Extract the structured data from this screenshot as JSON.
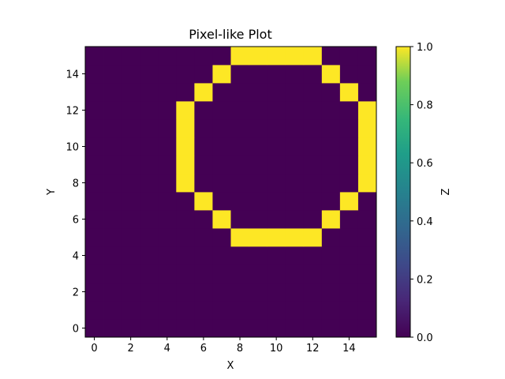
{
  "chart_data": {
    "type": "heatmap",
    "title": "Pixel-like Plot",
    "xlabel": "X",
    "ylabel": "Y",
    "colorbar_label": "Z",
    "colormap": "viridis",
    "color_low": "#440154",
    "color_high": "#fde725",
    "xlim": [
      -0.5,
      15.5
    ],
    "ylim": [
      -0.5,
      15.5
    ],
    "x_ticks": [
      0,
      2,
      4,
      6,
      8,
      10,
      12,
      14
    ],
    "y_ticks": [
      0,
      2,
      4,
      6,
      8,
      10,
      12,
      14
    ],
    "colorbar_range": [
      0.0,
      1.0
    ],
    "colorbar_ticks": [
      "0.0",
      "0.2",
      "0.4",
      "0.6",
      "0.8",
      "1.0"
    ],
    "grid": false,
    "z_rows_bottom_to_top": [
      [
        0,
        0,
        0,
        0,
        0,
        0,
        0,
        0,
        0,
        0,
        0,
        0,
        0,
        0,
        0,
        0
      ],
      [
        0,
        0,
        0,
        0,
        0,
        0,
        0,
        0,
        0,
        0,
        0,
        0,
        0,
        0,
        0,
        0
      ],
      [
        0,
        0,
        0,
        0,
        0,
        0,
        0,
        0,
        0,
        0,
        0,
        0,
        0,
        0,
        0,
        0
      ],
      [
        0,
        0,
        0,
        0,
        0,
        0,
        0,
        0,
        0,
        0,
        0,
        0,
        0,
        0,
        0,
        0
      ],
      [
        0,
        0,
        0,
        0,
        0,
        0,
        0,
        0,
        0,
        0,
        0,
        0,
        0,
        0,
        0,
        0
      ],
      [
        0,
        0,
        0,
        0,
        0,
        0,
        0,
        0,
        1,
        1,
        1,
        1,
        1,
        0,
        0,
        0
      ],
      [
        0,
        0,
        0,
        0,
        0,
        0,
        0,
        1,
        0,
        0,
        0,
        0,
        0,
        1,
        0,
        0
      ],
      [
        0,
        0,
        0,
        0,
        0,
        0,
        1,
        0,
        0,
        0,
        0,
        0,
        0,
        0,
        1,
        0
      ],
      [
        0,
        0,
        0,
        0,
        0,
        1,
        0,
        0,
        0,
        0,
        0,
        0,
        0,
        0,
        0,
        1
      ],
      [
        0,
        0,
        0,
        0,
        0,
        1,
        0,
        0,
        0,
        0,
        0,
        0,
        0,
        0,
        0,
        1
      ],
      [
        0,
        0,
        0,
        0,
        0,
        1,
        0,
        0,
        0,
        0,
        0,
        0,
        0,
        0,
        0,
        1
      ],
      [
        0,
        0,
        0,
        0,
        0,
        1,
        0,
        0,
        0,
        0,
        0,
        0,
        0,
        0,
        0,
        1
      ],
      [
        0,
        0,
        0,
        0,
        0,
        1,
        0,
        0,
        0,
        0,
        0,
        0,
        0,
        0,
        0,
        1
      ],
      [
        0,
        0,
        0,
        0,
        0,
        0,
        1,
        0,
        0,
        0,
        0,
        0,
        0,
        0,
        1,
        0
      ],
      [
        0,
        0,
        0,
        0,
        0,
        0,
        0,
        1,
        0,
        0,
        0,
        0,
        0,
        1,
        0,
        0
      ],
      [
        0,
        0,
        0,
        0,
        0,
        0,
        0,
        0,
        1,
        1,
        1,
        1,
        1,
        0,
        0,
        0
      ]
    ]
  }
}
